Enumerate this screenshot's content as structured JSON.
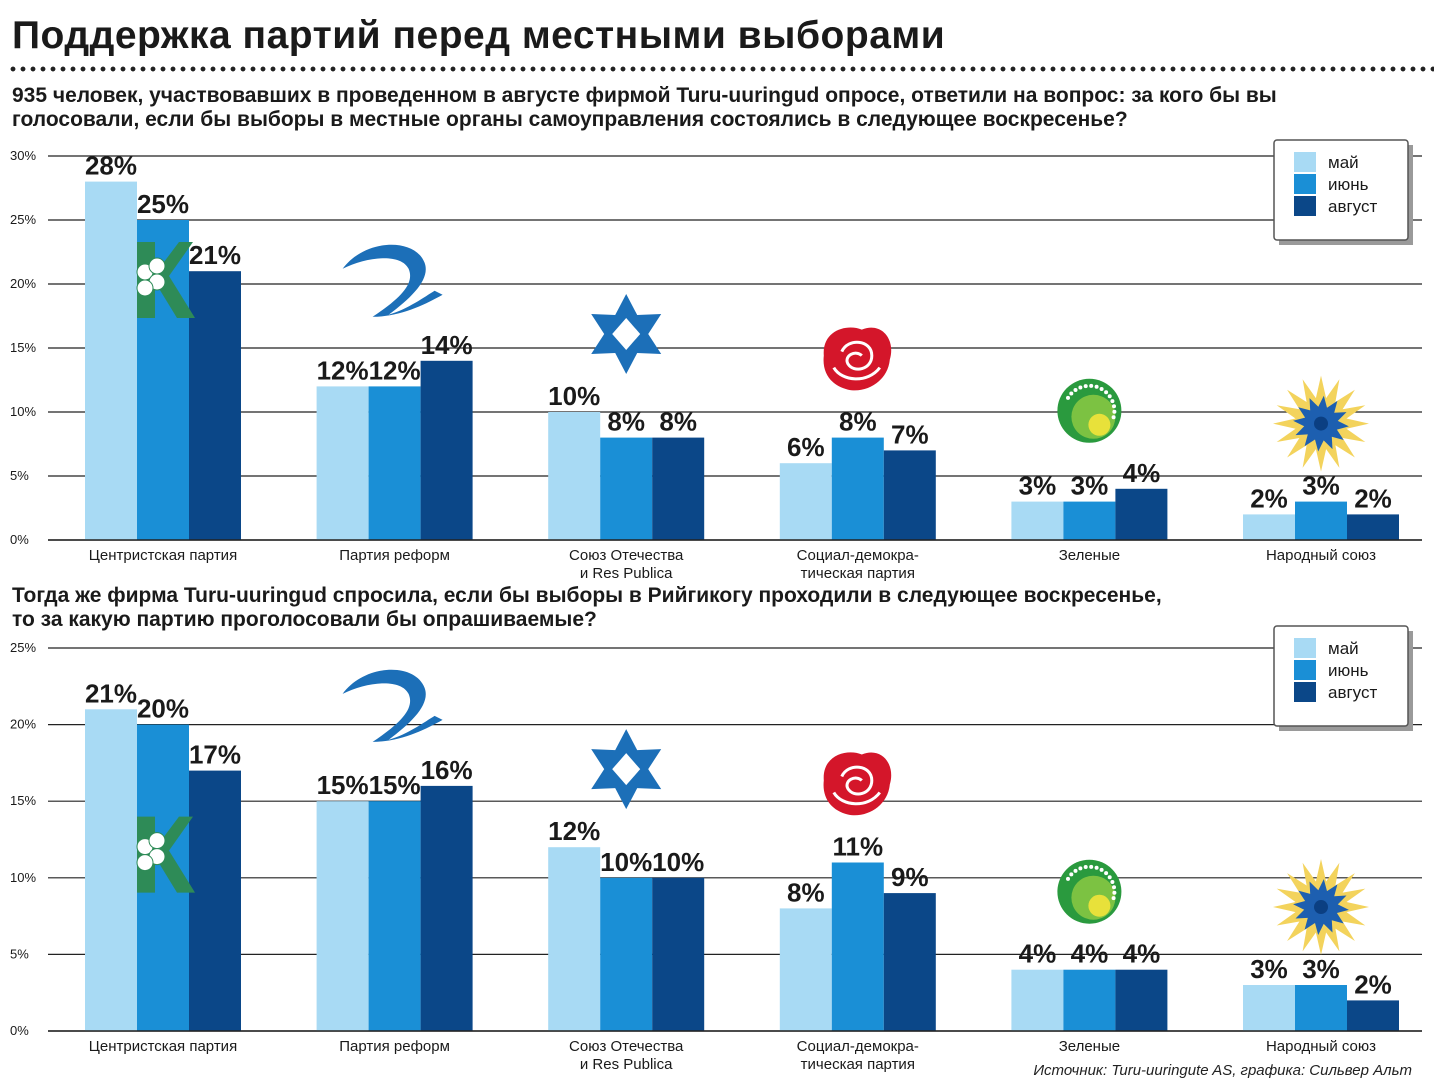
{
  "title": "Поддержка партий перед местными выборами",
  "question1_line1": "935 человек, участвовавших в проведенном в августе фирмой Turu-uuringud опросе, ответили на вопрос: за кого бы вы",
  "question1_line2": "голосовали, если бы выборы в местные органы самоуправления состоялись в следующее воскресенье?",
  "question2_line1": "Тогда же фирма Turu-uuringud спросила, если бы выборы в Рийгикогу проходили в следующее воскресенье,",
  "question2_line2": "то за какую партию проголосовали бы опрашиваемые?",
  "source": "Источник: Turu-uuringute AS, графика: Сильвер Альт",
  "colors": {
    "may": "#a8daf4",
    "june": "#1a8fd6",
    "august": "#0b4788",
    "grid": "#222222",
    "text": "#1a1a1a"
  },
  "party_logo_icons": [
    "center-party-k-logo-icon",
    "reform-party-squirrel-logo-icon",
    "pro-patria-star-logo-icon",
    "social-democrat-rose-logo-icon",
    "greens-logo-icon",
    "peoples-union-cornflower-logo-icon"
  ],
  "chart_data": [
    {
      "type": "bar",
      "categories": [
        [
          "Центристская партия"
        ],
        [
          "Партия реформ"
        ],
        [
          "Союз Отечества",
          "и Res Publica"
        ],
        [
          "Социал-демокра-",
          "тическая партия"
        ],
        [
          "Зеленые"
        ],
        [
          "Народный союз"
        ]
      ],
      "series": [
        {
          "name": "май",
          "values": [
            28,
            12,
            10,
            6,
            3,
            2
          ]
        },
        {
          "name": "июнь",
          "values": [
            25,
            12,
            8,
            8,
            3,
            3
          ]
        },
        {
          "name": "август",
          "values": [
            21,
            14,
            8,
            7,
            4,
            2
          ]
        }
      ],
      "data_labels": [
        [
          "28%",
          "25%",
          "21%"
        ],
        [
          "12%",
          "12%",
          "14%"
        ],
        [
          "10%",
          "8%",
          "8%"
        ],
        [
          "6%",
          "8%",
          "7%"
        ],
        [
          "3%",
          "3%",
          "4%"
        ],
        [
          "2%",
          "3%",
          "2%"
        ]
      ],
      "yticks": [
        "0%",
        "5%",
        "10%",
        "15%",
        "20%",
        "25%",
        "30%"
      ],
      "ylim": [
        0,
        30
      ],
      "grid": true,
      "legend": "top-right"
    },
    {
      "type": "bar",
      "categories": [
        [
          "Центристская партия"
        ],
        [
          "Партия реформ"
        ],
        [
          "Союз Отечества",
          "и Res Publica"
        ],
        [
          "Социал-демокра-",
          "тическая партия"
        ],
        [
          "Зеленые"
        ],
        [
          "Народный союз"
        ]
      ],
      "series": [
        {
          "name": "май",
          "values": [
            21,
            15,
            12,
            8,
            4,
            3
          ]
        },
        {
          "name": "июнь",
          "values": [
            20,
            15,
            10,
            11,
            4,
            3
          ]
        },
        {
          "name": "август",
          "values": [
            17,
            16,
            10,
            9,
            4,
            2
          ]
        }
      ],
      "data_labels": [
        [
          "21%",
          "20%",
          "17%"
        ],
        [
          "15%",
          "15%",
          "16%"
        ],
        [
          "12%",
          "10%",
          "10%"
        ],
        [
          "8%",
          "11%",
          "9%"
        ],
        [
          "4%",
          "4%",
          "4%"
        ],
        [
          "3%",
          "3%",
          "2%"
        ]
      ],
      "yticks": [
        "0%",
        "5%",
        "10%",
        "15%",
        "20%",
        "25%"
      ],
      "ylim": [
        0,
        25
      ],
      "grid": true,
      "legend": "top-right"
    }
  ]
}
